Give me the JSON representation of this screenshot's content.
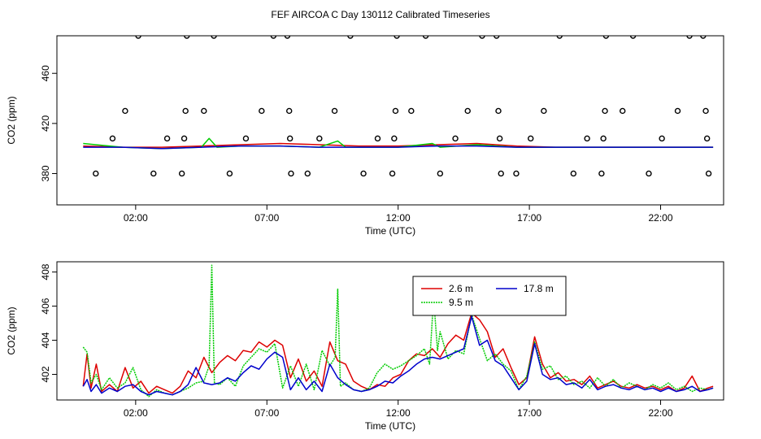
{
  "figure": {
    "title": "FEF AIRCOA C  Day 130112  Calibrated Timeseries"
  },
  "chart_data": [
    {
      "type": "line",
      "xlabel": "Time (UTC)",
      "ylabel": "CO2 (ppm)",
      "xlim": [
        -1.0,
        24.4
      ],
      "ylim": [
        355,
        490
      ],
      "xticks": [
        2,
        7,
        12,
        17,
        22
      ],
      "xtick_labels": [
        "02:00",
        "07:00",
        "12:00",
        "17:00",
        "22:00"
      ],
      "yticks": [
        380,
        420,
        460
      ],
      "ytick_labels": [
        "380",
        "420",
        "460"
      ],
      "grid": false,
      "legend": "none",
      "series": [
        {
          "color": "#dd0000",
          "x": [
            0.0,
            1.5,
            3.0,
            4.5,
            6.0,
            7.5,
            9.0,
            10.5,
            12.0,
            13.5,
            15.0,
            16.5,
            18.0,
            19.5,
            21.0,
            22.5,
            24.0
          ],
          "values": [
            402,
            401,
            401,
            402,
            403,
            404,
            403,
            402,
            402,
            403,
            404,
            402,
            401,
            401,
            401,
            401,
            401
          ]
        },
        {
          "color": "#00cc00",
          "x": [
            0.0,
            1.5,
            3.0,
            4.5,
            4.8,
            5.1,
            6.0,
            7.5,
            9.0,
            9.7,
            10.0,
            10.5,
            12.0,
            13.3,
            13.6,
            15.0,
            16.5,
            18.0,
            19.5,
            21.0,
            22.5,
            24.0
          ],
          "values": [
            404,
            401,
            400,
            401,
            408,
            401,
            402,
            402,
            401,
            406,
            401,
            401,
            401,
            404,
            401,
            403,
            401,
            401,
            401,
            401,
            401,
            401
          ]
        },
        {
          "color": "#0000cc",
          "x": [
            0.0,
            1.5,
            3.0,
            4.5,
            6.0,
            7.5,
            9.0,
            10.5,
            12.0,
            13.5,
            15.0,
            16.5,
            18.0,
            19.5,
            21.0,
            22.5,
            24.0
          ],
          "values": [
            401,
            401,
            400,
            401,
            402,
            402,
            401,
            401,
            401,
            402,
            402,
            401,
            401,
            401,
            401,
            401,
            401
          ]
        },
        {
          "color": "#000000",
          "markers": "open-circle",
          "x": [
            0.48,
            1.12,
            1.6,
            2.1,
            2.68,
            3.2,
            3.76,
            3.85,
            3.9,
            3.95,
            4.6,
            4.98,
            5.58,
            6.2,
            6.8,
            7.25,
            7.78,
            7.85,
            7.88,
            7.92,
            8.55,
            9.0,
            9.58,
            10.18,
            10.68,
            11.22,
            11.78,
            11.85,
            11.9,
            11.95,
            12.5,
            13.05,
            13.6,
            14.18,
            14.65,
            15.2,
            15.75,
            15.82,
            15.87,
            15.92,
            16.5,
            17.05,
            17.55,
            18.15,
            18.68,
            19.2,
            19.75,
            19.82,
            19.88,
            19.92,
            20.55,
            20.95,
            21.55,
            22.05,
            22.65,
            23.1,
            23.62,
            23.72,
            23.77,
            23.83
          ],
          "values": [
            380,
            408,
            430,
            490,
            380,
            408,
            380,
            408,
            430,
            490,
            430,
            490,
            380,
            408,
            430,
            490,
            490,
            430,
            408,
            380,
            380,
            408,
            430,
            490,
            380,
            408,
            380,
            408,
            430,
            490,
            430,
            490,
            380,
            408,
            430,
            490,
            490,
            430,
            408,
            380,
            380,
            408,
            430,
            490,
            380,
            408,
            380,
            408,
            430,
            490,
            430,
            490,
            380,
            408,
            430,
            490,
            490,
            430,
            408,
            380
          ]
        }
      ]
    },
    {
      "type": "line",
      "xlabel": "Time (UTC)",
      "ylabel": "CO2 (ppm)",
      "xlim": [
        -1.0,
        24.4
      ],
      "ylim": [
        400.5,
        408.6
      ],
      "xticks": [
        2,
        7,
        12,
        17,
        22
      ],
      "xtick_labels": [
        "02:00",
        "07:00",
        "12:00",
        "17:00",
        "22:00"
      ],
      "yticks": [
        402,
        404,
        406,
        408
      ],
      "ytick_labels": [
        "402",
        "404",
        "406",
        "408"
      ],
      "grid": false,
      "legend": "top-center",
      "series": [
        {
          "name": "2.6 m",
          "color": "#dd0000",
          "x": [
            0.0,
            0.15,
            0.3,
            0.5,
            0.7,
            1.0,
            1.3,
            1.6,
            1.9,
            2.2,
            2.5,
            2.8,
            3.1,
            3.4,
            3.7,
            4.0,
            4.3,
            4.6,
            4.9,
            5.2,
            5.5,
            5.8,
            6.1,
            6.4,
            6.7,
            7.0,
            7.3,
            7.6,
            7.9,
            8.2,
            8.5,
            8.8,
            9.1,
            9.4,
            9.7,
            10.0,
            10.3,
            10.6,
            10.9,
            11.2,
            11.5,
            11.8,
            12.1,
            12.4,
            12.7,
            13.0,
            13.3,
            13.6,
            13.9,
            14.2,
            14.5,
            14.8,
            15.1,
            15.4,
            15.7,
            16.0,
            16.3,
            16.6,
            16.9,
            17.2,
            17.5,
            17.8,
            18.1,
            18.4,
            18.7,
            19.0,
            19.3,
            19.6,
            19.9,
            20.2,
            20.5,
            20.8,
            21.1,
            21.4,
            21.7,
            22.0,
            22.3,
            22.6,
            22.9,
            23.2,
            23.5,
            23.8,
            24.0
          ],
          "values": [
            401.3,
            403.2,
            401.2,
            402.6,
            401.0,
            401.4,
            401.0,
            402.4,
            401.2,
            401.6,
            400.9,
            401.3,
            401.1,
            400.9,
            401.3,
            402.2,
            401.8,
            403.0,
            402.1,
            402.7,
            403.1,
            402.8,
            403.4,
            403.3,
            403.9,
            403.6,
            404.0,
            403.7,
            401.8,
            402.9,
            401.6,
            402.2,
            401.3,
            403.9,
            402.8,
            402.6,
            401.6,
            401.3,
            401.1,
            401.4,
            401.3,
            401.8,
            402.0,
            402.8,
            403.2,
            403.1,
            403.5,
            403.0,
            403.8,
            404.3,
            404.0,
            405.6,
            405.2,
            404.5,
            403.0,
            403.5,
            402.4,
            401.4,
            401.8,
            404.2,
            402.6,
            401.8,
            402.1,
            401.6,
            401.7,
            401.4,
            401.9,
            401.2,
            401.4,
            401.6,
            401.3,
            401.2,
            401.4,
            401.2,
            401.3,
            401.1,
            401.3,
            401.0,
            401.2,
            401.9,
            401.0,
            401.2,
            401.3
          ]
        },
        {
          "name": "9.5 m",
          "color": "#00cc00",
          "x": [
            0.0,
            0.15,
            0.3,
            0.5,
            0.7,
            1.0,
            1.3,
            1.6,
            1.9,
            2.2,
            2.5,
            2.8,
            3.1,
            3.4,
            3.7,
            4.0,
            4.3,
            4.6,
            4.8,
            4.9,
            5.0,
            5.2,
            5.5,
            5.8,
            6.1,
            6.4,
            6.7,
            7.0,
            7.3,
            7.6,
            7.9,
            8.2,
            8.5,
            8.8,
            9.1,
            9.4,
            9.6,
            9.7,
            9.8,
            10.0,
            10.3,
            10.6,
            10.9,
            11.2,
            11.5,
            11.8,
            12.1,
            12.4,
            12.7,
            13.0,
            13.2,
            13.35,
            13.5,
            13.6,
            13.9,
            14.2,
            14.5,
            14.8,
            15.1,
            15.4,
            15.7,
            16.0,
            16.3,
            16.6,
            16.9,
            17.2,
            17.5,
            17.8,
            18.1,
            18.4,
            18.7,
            19.0,
            19.3,
            19.6,
            19.9,
            20.2,
            20.5,
            20.8,
            21.1,
            21.4,
            21.7,
            22.0,
            22.3,
            22.6,
            22.9,
            23.2,
            23.5,
            23.8,
            24.0
          ],
          "values": [
            403.6,
            403.3,
            401.5,
            402.0,
            401.1,
            401.8,
            401.2,
            401.5,
            402.4,
            401.1,
            400.7,
            401.1,
            400.9,
            400.8,
            401.0,
            401.2,
            401.5,
            401.6,
            402.5,
            408.4,
            401.5,
            401.4,
            401.8,
            401.3,
            402.5,
            403.0,
            403.5,
            403.3,
            403.8,
            401.2,
            402.5,
            401.3,
            402.6,
            401.1,
            403.4,
            402.5,
            403.0,
            407.0,
            401.3,
            401.5,
            401.1,
            401.0,
            401.2,
            402.1,
            402.6,
            402.3,
            402.5,
            402.8,
            403.1,
            403.5,
            402.6,
            406.5,
            403.4,
            404.5,
            402.9,
            403.4,
            403.2,
            405.5,
            404.1,
            402.8,
            403.2,
            402.6,
            402.2,
            401.1,
            401.9,
            403.9,
            402.3,
            402.5,
            401.7,
            401.9,
            401.4,
            401.6,
            401.2,
            401.8,
            401.3,
            401.7,
            401.2,
            401.5,
            401.3,
            401.1,
            401.4,
            401.2,
            401.5,
            401.1,
            401.3,
            401.0,
            401.2,
            401.1,
            401.2
          ]
        },
        {
          "name": "17.8 m",
          "color": "#0000cc",
          "x": [
            0.0,
            0.15,
            0.3,
            0.5,
            0.7,
            1.0,
            1.3,
            1.6,
            1.9,
            2.2,
            2.5,
            2.8,
            3.1,
            3.4,
            3.7,
            4.0,
            4.3,
            4.6,
            4.9,
            5.2,
            5.5,
            5.8,
            6.1,
            6.4,
            6.7,
            7.0,
            7.3,
            7.6,
            7.9,
            8.2,
            8.5,
            8.8,
            9.1,
            9.4,
            9.7,
            10.0,
            10.3,
            10.6,
            10.9,
            11.2,
            11.5,
            11.8,
            12.1,
            12.4,
            12.7,
            13.0,
            13.3,
            13.6,
            13.9,
            14.2,
            14.5,
            14.8,
            15.1,
            15.4,
            15.7,
            16.0,
            16.3,
            16.6,
            16.9,
            17.2,
            17.5,
            17.8,
            18.1,
            18.4,
            18.7,
            19.0,
            19.3,
            19.6,
            19.9,
            20.2,
            20.5,
            20.8,
            21.1,
            21.4,
            21.7,
            22.0,
            22.3,
            22.6,
            22.9,
            23.2,
            23.5,
            23.8,
            24.0
          ],
          "values": [
            401.3,
            401.7,
            401.0,
            401.4,
            400.9,
            401.2,
            401.0,
            401.3,
            401.4,
            401.0,
            400.8,
            401.0,
            400.9,
            400.8,
            401.0,
            401.4,
            402.4,
            401.5,
            401.4,
            401.5,
            401.8,
            401.6,
            402.1,
            402.5,
            402.3,
            402.9,
            403.3,
            403.0,
            401.1,
            401.8,
            401.1,
            401.6,
            401.0,
            402.6,
            401.8,
            401.4,
            401.1,
            401.0,
            401.1,
            401.3,
            401.6,
            401.5,
            401.9,
            402.2,
            402.6,
            402.9,
            403.0,
            402.9,
            403.1,
            403.3,
            403.5,
            405.4,
            403.7,
            404.0,
            402.8,
            402.5,
            401.8,
            401.1,
            401.6,
            403.8,
            402.0,
            401.7,
            401.8,
            401.4,
            401.5,
            401.2,
            401.7,
            401.1,
            401.3,
            401.4,
            401.2,
            401.1,
            401.3,
            401.1,
            401.2,
            401.0,
            401.2,
            401.0,
            401.1,
            401.3,
            401.0,
            401.1,
            401.2
          ]
        }
      ]
    }
  ]
}
